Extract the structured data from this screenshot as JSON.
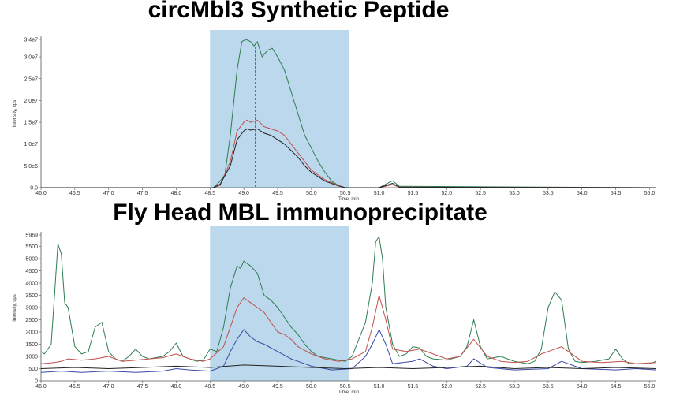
{
  "titles": {
    "top": "circMbl3 Synthetic Peptide",
    "bottom": "Fly Head MBL immunoprecipitate"
  },
  "colors": {
    "highlight": "#bcd8ec",
    "green": "#2e7d4f",
    "red": "#c0504d",
    "black": "#222222",
    "blue": "#3a4aa8"
  },
  "chart_data": [
    {
      "type": "line",
      "title": "circMbl3 Synthetic Peptide",
      "xlabel": "Time, min",
      "ylabel": "Intensity, cps",
      "xlim": [
        46.0,
        55.1
      ],
      "ylim": [
        0,
        34000000
      ],
      "xticks": [
        "46.0",
        "46.5",
        "47.0",
        "47.5",
        "48.0",
        "48.5",
        "49.0",
        "49.5",
        "50.0",
        "50.5",
        "51.0",
        "51.5",
        "52.0",
        "52.5",
        "53.0",
        "53.5",
        "54.0",
        "54.5",
        "55.0"
      ],
      "yticks": [
        "0.0",
        "5.0e6",
        "1.0e7",
        "1.5e7",
        "2.0e7",
        "2.5e7",
        "3.0e7",
        "3.4e7"
      ],
      "ytick_values": [
        0,
        5000000,
        10000000,
        15000000,
        20000000,
        25000000,
        30000000,
        34000000
      ],
      "highlight": [
        48.5,
        50.55
      ],
      "marker_x": 49.17,
      "series": [
        {
          "color": "green",
          "x": [
            46.0,
            48.55,
            48.65,
            48.72,
            48.8,
            48.9,
            48.97,
            49.03,
            49.1,
            49.15,
            49.2,
            49.27,
            49.35,
            49.42,
            49.5,
            49.6,
            49.7,
            49.8,
            49.9,
            50.0,
            50.1,
            50.2,
            50.3,
            50.4,
            50.5,
            51.0,
            51.1,
            51.2,
            51.3,
            55.1
          ],
          "y": [
            0,
            0,
            1500000,
            3000000,
            12000000,
            27000000,
            33500000,
            34000000,
            33500000,
            32500000,
            33500000,
            30000000,
            31500000,
            32000000,
            30000000,
            27000000,
            22000000,
            17000000,
            12000000,
            9000000,
            6000000,
            3500000,
            1500000,
            500000,
            0,
            0,
            800000,
            1600000,
            300000,
            0
          ]
        },
        {
          "color": "red",
          "x": [
            46.0,
            48.55,
            48.65,
            48.8,
            48.9,
            49.0,
            49.05,
            49.1,
            49.2,
            49.3,
            49.4,
            49.5,
            49.6,
            49.7,
            49.8,
            49.9,
            50.0,
            50.2,
            50.4,
            50.5,
            51.0,
            51.2,
            51.3,
            55.1
          ],
          "y": [
            0,
            0,
            500000,
            6000000,
            13000000,
            15000000,
            15500000,
            15000000,
            15500000,
            14000000,
            13500000,
            13000000,
            12000000,
            10000000,
            8000000,
            6000000,
            4000000,
            1800000,
            500000,
            0,
            0,
            700000,
            100000,
            0
          ]
        },
        {
          "color": "black",
          "x": [
            46.0,
            48.55,
            48.65,
            48.8,
            48.9,
            49.0,
            49.05,
            49.1,
            49.2,
            49.3,
            49.4,
            49.5,
            49.6,
            49.7,
            49.8,
            49.9,
            50.0,
            50.2,
            50.4,
            50.5,
            51.0,
            51.2,
            51.3,
            55.1
          ],
          "y": [
            0,
            0,
            800000,
            5000000,
            11000000,
            13000000,
            13500000,
            13200000,
            13500000,
            12500000,
            12000000,
            11000000,
            10000000,
            8500000,
            7000000,
            5000000,
            3500000,
            1500000,
            400000,
            0,
            0,
            1000000,
            100000,
            0
          ]
        }
      ]
    },
    {
      "type": "line",
      "title": "Fly Head MBL immunoprecipitate",
      "xlabel": "Time, min",
      "ylabel": "Intensity, cps",
      "xlim": [
        46.0,
        55.1
      ],
      "ylim": [
        0,
        5969
      ],
      "xticks": [
        "46.0",
        "46.5",
        "47.0",
        "47.5",
        "48.0",
        "48.5",
        "49.0",
        "49.5",
        "50.0",
        "50.5",
        "51.0",
        "51.5",
        "52.0",
        "52.5",
        "53.0",
        "53.5",
        "54.0",
        "54.5",
        "55.0"
      ],
      "yticks": [
        "0",
        "500",
        "1000",
        "1500",
        "2000",
        "2500",
        "3000",
        "3500",
        "4000",
        "4500",
        "5000",
        "5500",
        "5969"
      ],
      "ytick_values": [
        0,
        500,
        1000,
        1500,
        2000,
        2500,
        3000,
        3500,
        4000,
        4500,
        5000,
        5500,
        5969
      ],
      "highlight": [
        48.5,
        50.55
      ],
      "series": [
        {
          "color": "green",
          "x": [
            46.0,
            46.05,
            46.15,
            46.2,
            46.25,
            46.3,
            46.35,
            46.4,
            46.5,
            46.6,
            46.7,
            46.8,
            46.9,
            47.0,
            47.1,
            47.2,
            47.3,
            47.4,
            47.5,
            47.6,
            47.8,
            47.9,
            48.0,
            48.1,
            48.2,
            48.3,
            48.4,
            48.5,
            48.6,
            48.7,
            48.8,
            48.9,
            48.95,
            49.0,
            49.1,
            49.2,
            49.3,
            49.4,
            49.5,
            49.6,
            49.7,
            49.8,
            49.9,
            50.0,
            50.1,
            50.3,
            50.5,
            50.6,
            50.7,
            50.8,
            50.9,
            50.95,
            51.0,
            51.05,
            51.1,
            51.2,
            51.3,
            51.4,
            51.5,
            51.6,
            51.7,
            51.8,
            52.0,
            52.2,
            52.3,
            52.4,
            52.5,
            52.6,
            52.8,
            53.0,
            53.2,
            53.3,
            53.4,
            53.5,
            53.6,
            53.7,
            53.8,
            53.9,
            54.0,
            54.2,
            54.4,
            54.5,
            54.6,
            54.7,
            54.8,
            55.0,
            55.1
          ],
          "y": [
            1200,
            1100,
            1500,
            3500,
            5600,
            5200,
            3200,
            3000,
            1400,
            1100,
            1200,
            2200,
            2400,
            1200,
            900,
            800,
            1000,
            1300,
            1000,
            900,
            1000,
            1200,
            1550,
            1000,
            900,
            800,
            850,
            1300,
            1200,
            2200,
            3800,
            4700,
            4600,
            4900,
            4700,
            4400,
            3500,
            3300,
            3000,
            2600,
            2200,
            1900,
            1500,
            1200,
            1000,
            900,
            800,
            1000,
            1700,
            2400,
            4000,
            5700,
            5900,
            5000,
            3000,
            1500,
            1000,
            1100,
            1400,
            1350,
            1000,
            900,
            850,
            1000,
            1400,
            2500,
            1400,
            900,
            1000,
            800,
            700,
            800,
            1300,
            3000,
            3650,
            3300,
            1300,
            800,
            750,
            800,
            900,
            1300,
            900,
            700,
            700,
            700,
            800
          ]
        },
        {
          "color": "red",
          "x": [
            46.0,
            46.2,
            46.3,
            46.4,
            46.6,
            46.8,
            47.0,
            47.2,
            47.4,
            47.6,
            47.8,
            48.0,
            48.2,
            48.4,
            48.5,
            48.7,
            48.8,
            48.9,
            49.0,
            49.1,
            49.2,
            49.3,
            49.4,
            49.5,
            49.6,
            49.7,
            49.8,
            50.0,
            50.2,
            50.4,
            50.6,
            50.8,
            50.9,
            51.0,
            51.1,
            51.2,
            51.4,
            51.6,
            51.8,
            52.0,
            52.2,
            52.4,
            52.6,
            52.8,
            53.0,
            53.2,
            53.4,
            53.6,
            53.7,
            53.8,
            54.0,
            54.3,
            54.6,
            54.8,
            55.1
          ],
          "y": [
            700,
            750,
            800,
            900,
            850,
            900,
            1000,
            800,
            850,
            900,
            950,
            1100,
            900,
            800,
            900,
            1400,
            2200,
            3000,
            3400,
            3200,
            3000,
            2800,
            2400,
            2000,
            1900,
            1700,
            1400,
            1100,
            900,
            800,
            900,
            1200,
            2200,
            3500,
            2500,
            1300,
            1200,
            1300,
            1100,
            900,
            1000,
            1700,
            1000,
            800,
            750,
            800,
            1100,
            1300,
            1400,
            1200,
            800,
            750,
            800,
            700,
            750
          ]
        },
        {
          "color": "blue",
          "x": [
            46.0,
            46.3,
            46.6,
            47.0,
            47.4,
            47.8,
            48.0,
            48.2,
            48.5,
            48.7,
            48.8,
            48.9,
            49.0,
            49.1,
            49.2,
            49.3,
            49.5,
            49.7,
            50.0,
            50.3,
            50.6,
            50.8,
            50.9,
            51.0,
            51.1,
            51.2,
            51.5,
            51.6,
            51.8,
            52.0,
            52.3,
            52.4,
            52.6,
            53.0,
            53.5,
            53.7,
            54.0,
            54.5,
            54.8,
            55.1
          ],
          "y": [
            350,
            400,
            350,
            400,
            350,
            400,
            500,
            450,
            400,
            600,
            1200,
            1700,
            2100,
            1800,
            1600,
            1500,
            1200,
            900,
            600,
            450,
            500,
            1000,
            1500,
            2100,
            1500,
            700,
            800,
            900,
            600,
            500,
            600,
            900,
            550,
            450,
            500,
            800,
            500,
            450,
            500,
            450
          ]
        },
        {
          "color": "black",
          "x": [
            46.0,
            46.5,
            47.0,
            47.5,
            48.0,
            48.5,
            49.0,
            49.5,
            50.0,
            50.5,
            51.0,
            51.5,
            52.0,
            52.5,
            53.0,
            53.5,
            54.0,
            54.5,
            55.1
          ],
          "y": [
            500,
            550,
            500,
            550,
            600,
            550,
            650,
            600,
            550,
            500,
            550,
            500,
            550,
            600,
            500,
            550,
            500,
            550,
            500
          ]
        }
      ]
    }
  ]
}
